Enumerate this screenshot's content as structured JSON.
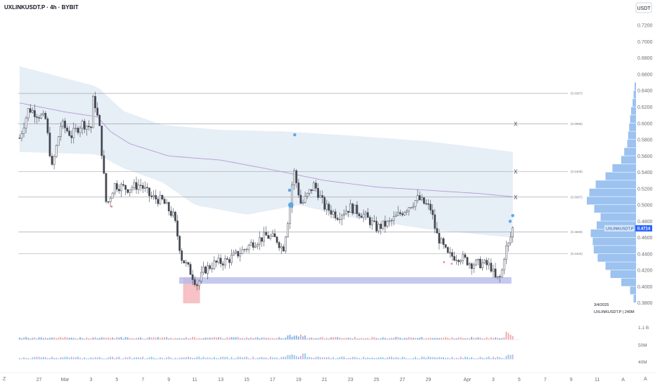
{
  "symbol_title": "UXLINKUSDT.P · 4h · BYBIT",
  "currency_badge": "USDT",
  "price_badge": {
    "symbol": "UXLINKUSDT.P",
    "value": "0.4714",
    "price": 0.4714
  },
  "date_stamp": "3/4/2025",
  "footer_info": "UXLINKUSDT.P | 240M",
  "volume_labels": [
    "1.1 B",
    "50M",
    "40M"
  ],
  "axis_corner_left": "Z",
  "axis_corner_right": "A",
  "crosshair_marker": "X",
  "colors": {
    "up": "#ffffff",
    "down": "#434651",
    "wick": "#434651",
    "cloud": "#c8d9ea",
    "purple_line": "#b59bd3",
    "support_zone": "#b5bbeb",
    "red_zone": "#f4b7bb",
    "profile": "#4a90e2",
    "dots": "#5aa7e6",
    "badge_bg": "#2962ff"
  },
  "chart_data": {
    "type": "candlestick",
    "title": "UXLINKUSDT.P · 4h · BYBIT",
    "y_ticks": [
      "0.7200",
      "0.7000",
      "0.6800",
      "0.6600",
      "0.6400",
      "0.6200",
      "0.6000",
      "0.5800",
      "0.5600",
      "0.5400",
      "0.5200",
      "0.5000",
      "0.4800",
      "0.4600",
      "0.4400",
      "0.4200",
      "0.4000",
      "0.3800"
    ],
    "y_tick_values": [
      0.72,
      0.7,
      0.68,
      0.66,
      0.64,
      0.62,
      0.6,
      0.58,
      0.56,
      0.54,
      0.52,
      0.5,
      0.48,
      0.46,
      0.44,
      0.42,
      0.4,
      0.38
    ],
    "ylim": [
      0.3745,
      0.7305
    ],
    "x_tick_labels": [
      "27",
      "Mar",
      "3",
      "5",
      "7",
      "9",
      "11",
      "13",
      "15",
      "17",
      "19",
      "21",
      "23",
      "25",
      "27",
      "29",
      "Apr",
      "3",
      "5",
      "7",
      "9",
      "11",
      "A"
    ],
    "x_tick_days": [
      -2,
      0,
      2,
      4,
      6,
      8,
      10,
      12,
      14,
      16,
      18,
      20,
      22,
      24,
      26,
      28,
      31,
      33,
      35,
      37,
      39,
      41,
      43
    ],
    "xlim_days": [
      -3.6,
      44.0
    ],
    "horizontal_levels": [
      {
        "label": "(0.6367)",
        "value": 0.6367,
        "x_marker": false
      },
      {
        "label": "(0.5995)",
        "value": 0.5995,
        "x_marker": true
      },
      {
        "label": "(0.5409)",
        "value": 0.5409,
        "x_marker": true
      },
      {
        "label": "(0.5097)",
        "value": 0.5097,
        "x_marker": true
      },
      {
        "label": "(0.4669)",
        "value": 0.4669,
        "x_marker": false
      },
      {
        "label": "(0.4404)",
        "value": 0.4404,
        "x_marker": false
      }
    ],
    "support_zone": {
      "from_day": 8.8,
      "to_day": 34.4,
      "low": 0.4035,
      "high": 0.4115
    },
    "red_zone": {
      "from_day": 9.1,
      "to_day": 10.4,
      "low": 0.3795,
      "high": 0.411
    },
    "price_path_anchors": [
      [
        -3.5,
        0.582
      ],
      [
        -2.8,
        0.618
      ],
      [
        -1.5,
        0.605
      ],
      [
        -1.0,
        0.545
      ],
      [
        -0.3,
        0.6
      ],
      [
        0.5,
        0.585
      ],
      [
        1.3,
        0.6
      ],
      [
        2.0,
        0.595
      ],
      [
        2.2,
        0.635
      ],
      [
        2.7,
        0.59
      ],
      [
        3.2,
        0.498
      ],
      [
        3.8,
        0.525
      ],
      [
        4.8,
        0.52
      ],
      [
        5.8,
        0.525
      ],
      [
        6.6,
        0.51
      ],
      [
        7.5,
        0.505
      ],
      [
        8.4,
        0.485
      ],
      [
        9.0,
        0.435
      ],
      [
        9.6,
        0.42
      ],
      [
        10.2,
        0.402
      ],
      [
        10.7,
        0.42
      ],
      [
        11.5,
        0.428
      ],
      [
        12.5,
        0.432
      ],
      [
        13.5,
        0.442
      ],
      [
        14.5,
        0.454
      ],
      [
        15.5,
        0.462
      ],
      [
        16.3,
        0.458
      ],
      [
        16.8,
        0.445
      ],
      [
        17.4,
        0.505
      ],
      [
        17.6,
        0.545
      ],
      [
        18.2,
        0.5
      ],
      [
        19.2,
        0.525
      ],
      [
        20.0,
        0.498
      ],
      [
        21.0,
        0.487
      ],
      [
        22.0,
        0.497
      ],
      [
        23.0,
        0.488
      ],
      [
        24.0,
        0.472
      ],
      [
        25.0,
        0.478
      ],
      [
        26.0,
        0.492
      ],
      [
        27.2,
        0.508
      ],
      [
        28.2,
        0.495
      ],
      [
        28.6,
        0.465
      ],
      [
        29.5,
        0.438
      ],
      [
        30.5,
        0.436
      ],
      [
        31.3,
        0.428
      ],
      [
        32.2,
        0.428
      ],
      [
        32.8,
        0.425
      ],
      [
        33.2,
        0.408
      ],
      [
        33.6,
        0.412
      ],
      [
        33.9,
        0.445
      ],
      [
        34.2,
        0.452
      ],
      [
        34.5,
        0.4714
      ]
    ],
    "cloud_upper_anchors": [
      [
        -3.5,
        0.67
      ],
      [
        2.5,
        0.645
      ],
      [
        4.5,
        0.615
      ],
      [
        7.5,
        0.598
      ],
      [
        12.0,
        0.592
      ],
      [
        17.0,
        0.59
      ],
      [
        22.0,
        0.585
      ],
      [
        28.0,
        0.578
      ],
      [
        34.5,
        0.565
      ]
    ],
    "cloud_lower_anchors": [
      [
        -3.5,
        0.565
      ],
      [
        2.5,
        0.562
      ],
      [
        4.5,
        0.545
      ],
      [
        7.5,
        0.528
      ],
      [
        10.0,
        0.5
      ],
      [
        14.0,
        0.488
      ],
      [
        18.0,
        0.5
      ],
      [
        22.0,
        0.485
      ],
      [
        28.0,
        0.47
      ],
      [
        34.5,
        0.46
      ]
    ],
    "vwap_anchors": [
      [
        -3.5,
        0.625
      ],
      [
        0.0,
        0.614
      ],
      [
        2.5,
        0.608
      ],
      [
        3.5,
        0.59
      ],
      [
        5.0,
        0.575
      ],
      [
        8.0,
        0.56
      ],
      [
        12.0,
        0.555
      ],
      [
        16.0,
        0.543
      ],
      [
        20.0,
        0.53
      ],
      [
        24.0,
        0.522
      ],
      [
        28.0,
        0.518
      ],
      [
        32.0,
        0.514
      ],
      [
        34.5,
        0.51
      ]
    ],
    "blue_dots": [
      [
        17.3,
        0.518
      ],
      [
        17.4,
        0.5
      ],
      [
        17.7,
        0.586
      ],
      [
        34.5,
        0.487
      ],
      [
        34.3,
        0.48
      ]
    ],
    "red_dots": [
      [
        3.6,
        0.498
      ],
      [
        29.2,
        0.43
      ],
      [
        29.8,
        0.428
      ]
    ],
    "volume_profile_levels": [
      0.38,
      0.39,
      0.4,
      0.41,
      0.42,
      0.43,
      0.44,
      0.45,
      0.46,
      0.47,
      0.48,
      0.49,
      0.5,
      0.51,
      0.52,
      0.53,
      0.54,
      0.55,
      0.56,
      0.57,
      0.58,
      0.59,
      0.6,
      0.61,
      0.62,
      0.63,
      0.64
    ],
    "volume_profile_widths": [
      0.05,
      0.12,
      0.3,
      0.52,
      0.62,
      0.78,
      0.86,
      0.88,
      0.92,
      0.8,
      0.72,
      0.85,
      1.0,
      0.95,
      0.82,
      0.62,
      0.48,
      0.3,
      0.24,
      0.18,
      0.16,
      0.14,
      0.12,
      0.1,
      0.07,
      0.05,
      0.03
    ]
  }
}
